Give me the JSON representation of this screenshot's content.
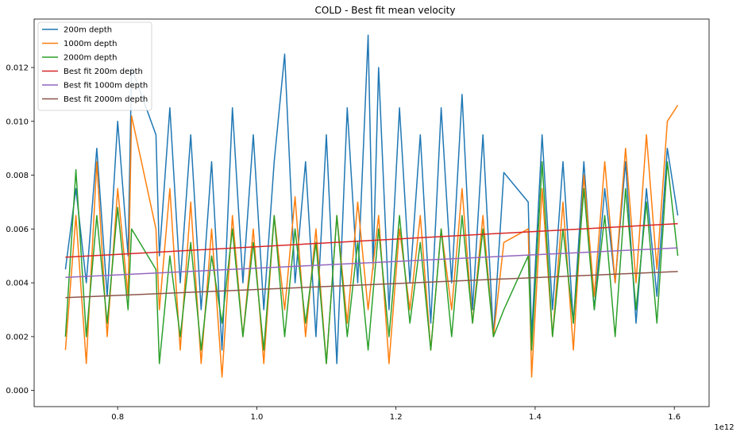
{
  "chart_data": {
    "type": "line",
    "title": "COLD - Best fit mean velocity",
    "xlabel": "",
    "ylabel": "",
    "x_offset_label": "1e12",
    "xlim": [
      0.68,
      1.65
    ],
    "ylim": [
      -0.0006,
      0.0138
    ],
    "x_ticks": [
      0.8,
      1.0,
      1.2,
      1.4,
      1.6
    ],
    "x_tick_labels": [
      "0.8",
      "1.0",
      "1.2",
      "1.4",
      "1.6"
    ],
    "y_ticks": [
      0.0,
      0.002,
      0.004,
      0.006,
      0.008,
      0.01,
      0.012
    ],
    "y_tick_labels": [
      "0.000",
      "0.002",
      "0.004",
      "0.006",
      "0.008",
      "0.010",
      "0.012"
    ],
    "grid": false,
    "legend_position": "top-left",
    "series": [
      {
        "name": "200m depth",
        "color": "#1f77b4",
        "x": [
          0.725,
          0.74,
          0.755,
          0.77,
          0.785,
          0.8,
          0.815,
          0.82,
          0.855,
          0.86,
          0.875,
          0.89,
          0.905,
          0.92,
          0.935,
          0.95,
          0.965,
          0.98,
          0.995,
          1.01,
          1.025,
          1.04,
          1.055,
          1.07,
          1.085,
          1.1,
          1.115,
          1.13,
          1.145,
          1.16,
          1.167,
          1.175,
          1.19,
          1.205,
          1.22,
          1.235,
          1.25,
          1.265,
          1.28,
          1.295,
          1.31,
          1.325,
          1.34,
          1.355,
          1.39,
          1.395,
          1.41,
          1.425,
          1.44,
          1.455,
          1.47,
          1.485,
          1.5,
          1.515,
          1.53,
          1.545,
          1.56,
          1.575,
          1.59,
          1.605
        ],
        "y": [
          0.0045,
          0.0075,
          0.004,
          0.009,
          0.0035,
          0.01,
          0.005,
          0.012,
          0.0095,
          0.005,
          0.0105,
          0.004,
          0.0095,
          0.003,
          0.0085,
          0.0015,
          0.0105,
          0.004,
          0.0095,
          0.003,
          0.0085,
          0.0125,
          0.004,
          0.0085,
          0.002,
          0.0095,
          0.001,
          0.0105,
          0.004,
          0.0132,
          0.0045,
          0.012,
          0.003,
          0.0105,
          0.004,
          0.0095,
          0.0025,
          0.0105,
          0.004,
          0.011,
          0.003,
          0.0095,
          0.002,
          0.0081,
          0.007,
          0.002,
          0.0095,
          0.003,
          0.0085,
          0.0025,
          0.0085,
          0.003,
          0.0075,
          0.004,
          0.0085,
          0.0025,
          0.0075,
          0.0035,
          0.009,
          0.0065
        ]
      },
      {
        "name": "1000m depth",
        "color": "#ff7f0e",
        "x": [
          0.725,
          0.74,
          0.755,
          0.77,
          0.785,
          0.8,
          0.815,
          0.82,
          0.855,
          0.86,
          0.875,
          0.89,
          0.905,
          0.92,
          0.935,
          0.95,
          0.965,
          0.98,
          0.995,
          1.01,
          1.025,
          1.04,
          1.055,
          1.07,
          1.085,
          1.1,
          1.115,
          1.13,
          1.145,
          1.16,
          1.175,
          1.19,
          1.205,
          1.22,
          1.235,
          1.25,
          1.265,
          1.28,
          1.295,
          1.31,
          1.325,
          1.34,
          1.355,
          1.39,
          1.395,
          1.41,
          1.425,
          1.44,
          1.455,
          1.47,
          1.485,
          1.5,
          1.515,
          1.53,
          1.545,
          1.56,
          1.575,
          1.59,
          1.605
        ],
        "y": [
          0.0015,
          0.0065,
          0.001,
          0.0085,
          0.002,
          0.0075,
          0.0035,
          0.0102,
          0.006,
          0.003,
          0.0075,
          0.0015,
          0.007,
          0.001,
          0.006,
          0.0005,
          0.0065,
          0.002,
          0.006,
          0.001,
          0.0065,
          0.003,
          0.0072,
          0.002,
          0.006,
          0.001,
          0.0065,
          0.0025,
          0.007,
          0.003,
          0.0065,
          0.001,
          0.006,
          0.003,
          0.0065,
          0.0015,
          0.006,
          0.003,
          0.0075,
          0.0025,
          0.0065,
          0.002,
          0.0055,
          0.006,
          0.0005,
          0.0075,
          0.002,
          0.007,
          0.0015,
          0.008,
          0.0035,
          0.0085,
          0.004,
          0.009,
          0.004,
          0.0095,
          0.0045,
          0.01,
          0.0106
        ]
      },
      {
        "name": "2000m depth",
        "color": "#2ca02c",
        "x": [
          0.725,
          0.74,
          0.755,
          0.77,
          0.785,
          0.8,
          0.815,
          0.82,
          0.855,
          0.86,
          0.875,
          0.89,
          0.905,
          0.92,
          0.935,
          0.95,
          0.965,
          0.98,
          0.995,
          1.01,
          1.025,
          1.04,
          1.055,
          1.07,
          1.085,
          1.1,
          1.115,
          1.13,
          1.145,
          1.16,
          1.175,
          1.19,
          1.205,
          1.22,
          1.235,
          1.25,
          1.265,
          1.28,
          1.295,
          1.31,
          1.325,
          1.34,
          1.355,
          1.39,
          1.395,
          1.41,
          1.425,
          1.44,
          1.455,
          1.47,
          1.485,
          1.5,
          1.515,
          1.53,
          1.545,
          1.56,
          1.575,
          1.59,
          1.605
        ],
        "y": [
          0.002,
          0.0082,
          0.002,
          0.0065,
          0.0025,
          0.0068,
          0.003,
          0.006,
          0.0045,
          0.001,
          0.005,
          0.002,
          0.0055,
          0.0015,
          0.005,
          0.0025,
          0.006,
          0.002,
          0.0055,
          0.0015,
          0.0065,
          0.002,
          0.006,
          0.0025,
          0.0055,
          0.001,
          0.0065,
          0.002,
          0.0055,
          0.0015,
          0.006,
          0.002,
          0.0065,
          0.0025,
          0.0055,
          0.0015,
          0.006,
          0.002,
          0.0065,
          0.0025,
          0.006,
          0.002,
          0.003,
          0.005,
          0.0015,
          0.0085,
          0.002,
          0.006,
          0.0025,
          0.0075,
          0.003,
          0.0065,
          0.002,
          0.0075,
          0.003,
          0.007,
          0.0025,
          0.0085,
          0.005
        ]
      },
      {
        "name": "Best fit 200m depth",
        "color": "#d62728",
        "x": [
          0.725,
          1.605
        ],
        "y": [
          0.00495,
          0.0062
        ]
      },
      {
        "name": "Best fit 1000m depth",
        "color": "#9467bd",
        "x": [
          0.725,
          1.605
        ],
        "y": [
          0.0042,
          0.0053
        ]
      },
      {
        "name": "Best fit 2000m depth",
        "color": "#8c564b",
        "x": [
          0.725,
          1.605
        ],
        "y": [
          0.00345,
          0.00442
        ]
      }
    ]
  }
}
